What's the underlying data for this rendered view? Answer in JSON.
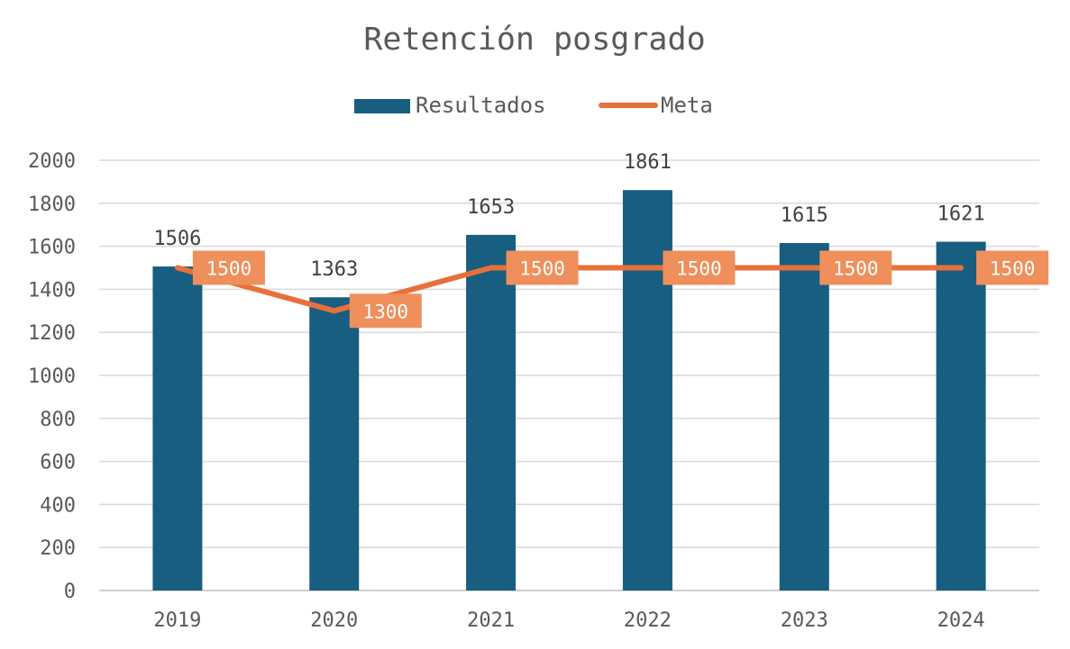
{
  "chart_data": {
    "type": "bar",
    "title": "Retención posgrado",
    "categories": [
      "2019",
      "2020",
      "2021",
      "2022",
      "2023",
      "2024"
    ],
    "series": [
      {
        "name": "Resultados",
        "type": "bar",
        "color": "#175E80",
        "values": [
          1506,
          1363,
          1653,
          1861,
          1615,
          1621
        ]
      },
      {
        "name": "Meta",
        "type": "line",
        "color": "#E8703A",
        "label_bg": "#EE8F5C",
        "values": [
          1500,
          1300,
          1500,
          1500,
          1500,
          1500
        ]
      }
    ],
    "ylim": [
      0,
      2000
    ],
    "yticks": [
      0,
      200,
      400,
      600,
      800,
      1000,
      1200,
      1400,
      1600,
      1800,
      2000
    ],
    "grid": true,
    "legend": "top"
  }
}
